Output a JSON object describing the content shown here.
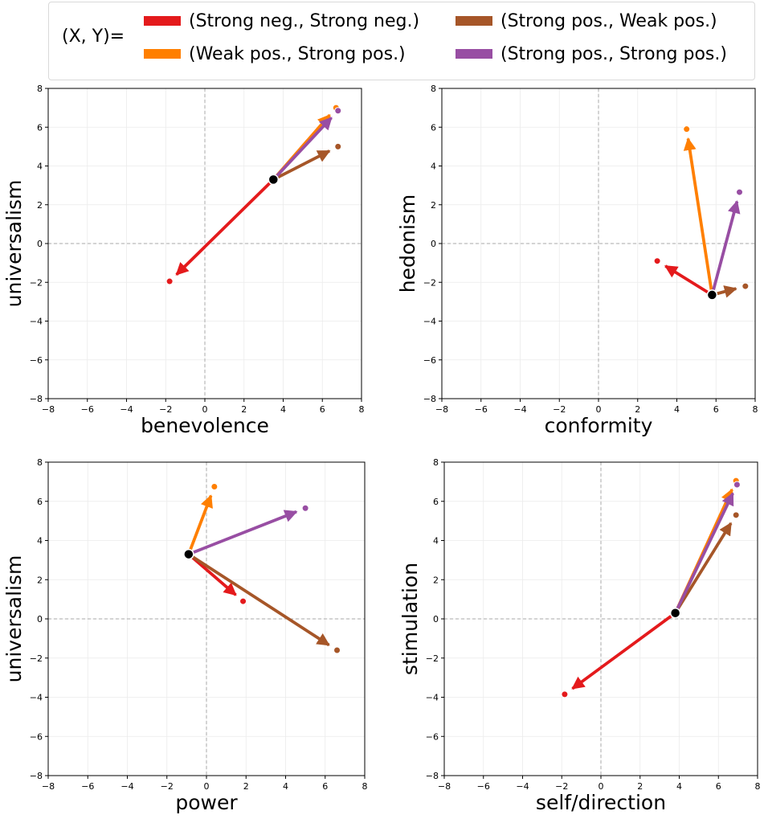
{
  "legend": {
    "prefix": "(X, Y)=",
    "items": [
      {
        "label": "(Strong neg., Strong neg.)",
        "color": "#e41a1c"
      },
      {
        "label": "(Weak pos., Strong pos.)",
        "color": "#ff7f00"
      },
      {
        "label": "(Strong pos., Weak pos.)",
        "color": "#a65628"
      },
      {
        "label": "(Strong pos., Strong pos.)",
        "color": "#984ea3"
      }
    ]
  },
  "chart_data": [
    {
      "type": "scatter",
      "xlabel": "benevolence",
      "ylabel": "universalism",
      "xlim": [
        -8,
        8
      ],
      "ylim": [
        -8,
        8
      ],
      "ticks": [
        -8,
        -6,
        -4,
        -2,
        0,
        2,
        4,
        6,
        8
      ],
      "grid": true,
      "origin": [
        3.5,
        3.3
      ],
      "series": [
        {
          "name": "(Strong neg., Strong neg.)",
          "color": "#e41a1c",
          "point": [
            -1.8,
            -1.95
          ]
        },
        {
          "name": "(Weak pos., Strong pos.)",
          "color": "#ff7f00",
          "point": [
            6.7,
            7.0
          ]
        },
        {
          "name": "(Strong pos., Weak pos.)",
          "color": "#a65628",
          "point": [
            6.8,
            5.0
          ]
        },
        {
          "name": "(Strong pos., Strong pos.)",
          "color": "#984ea3",
          "point": [
            6.8,
            6.85
          ]
        }
      ]
    },
    {
      "type": "scatter",
      "xlabel": "conformity",
      "ylabel": "hedonism",
      "xlim": [
        -8,
        8
      ],
      "ylim": [
        -8,
        8
      ],
      "ticks": [
        -8,
        -6,
        -4,
        -2,
        0,
        2,
        4,
        6,
        8
      ],
      "grid": true,
      "origin": [
        5.8,
        -2.65
      ],
      "series": [
        {
          "name": "(Strong neg., Strong neg.)",
          "color": "#e41a1c",
          "point": [
            3.0,
            -0.9
          ]
        },
        {
          "name": "(Weak pos., Strong pos.)",
          "color": "#ff7f00",
          "point": [
            4.5,
            5.9
          ]
        },
        {
          "name": "(Strong pos., Weak pos.)",
          "color": "#a65628",
          "point": [
            7.5,
            -2.2
          ]
        },
        {
          "name": "(Strong pos., Strong pos.)",
          "color": "#984ea3",
          "point": [
            7.2,
            2.65
          ]
        }
      ]
    },
    {
      "type": "scatter",
      "xlabel": "power",
      "ylabel": "universalism",
      "xlim": [
        -8,
        8
      ],
      "ylim": [
        -8,
        8
      ],
      "ticks": [
        -8,
        -6,
        -4,
        -2,
        0,
        2,
        4,
        6,
        8
      ],
      "grid": true,
      "origin": [
        -0.9,
        3.3
      ],
      "series": [
        {
          "name": "(Strong neg., Strong neg.)",
          "color": "#e41a1c",
          "point": [
            1.85,
            0.9
          ]
        },
        {
          "name": "(Weak pos., Strong pos.)",
          "color": "#ff7f00",
          "point": [
            0.4,
            6.75
          ]
        },
        {
          "name": "(Strong pos., Weak pos.)",
          "color": "#a65628",
          "point": [
            6.6,
            -1.6
          ]
        },
        {
          "name": "(Strong pos., Strong pos.)",
          "color": "#984ea3",
          "point": [
            5.0,
            5.65
          ]
        }
      ]
    },
    {
      "type": "scatter",
      "xlabel": "self/direction",
      "ylabel": "stimulation",
      "xlim": [
        -8,
        8
      ],
      "ylim": [
        -8,
        8
      ],
      "ticks": [
        -8,
        -6,
        -4,
        -2,
        0,
        2,
        4,
        6,
        8
      ],
      "grid": true,
      "origin": [
        3.8,
        0.3
      ],
      "series": [
        {
          "name": "(Strong neg., Strong neg.)",
          "color": "#e41a1c",
          "point": [
            -1.85,
            -3.85
          ]
        },
        {
          "name": "(Weak pos., Strong pos.)",
          "color": "#ff7f00",
          "point": [
            6.9,
            7.05
          ]
        },
        {
          "name": "(Strong pos., Weak pos.)",
          "color": "#a65628",
          "point": [
            6.9,
            5.3
          ]
        },
        {
          "name": "(Strong pos., Strong pos.)",
          "color": "#984ea3",
          "point": [
            6.95,
            6.85
          ]
        }
      ]
    }
  ]
}
